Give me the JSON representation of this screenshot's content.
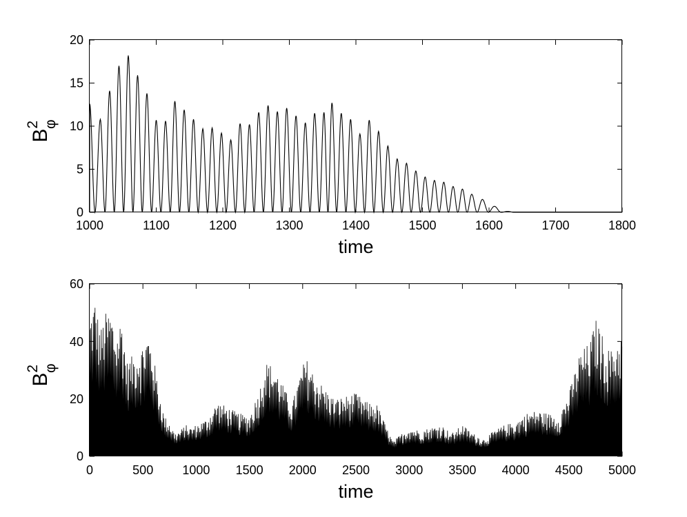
{
  "chart_data": [
    {
      "type": "line",
      "xlabel": "time",
      "ylabel": {
        "base": "B",
        "superscript": "2",
        "subscript": "φ"
      },
      "xlim": [
        1000,
        1800
      ],
      "ylim": [
        0,
        20
      ],
      "xticks": [
        "1000",
        "1100",
        "1200",
        "1300",
        "1400",
        "1500",
        "1600",
        "1700",
        "1800"
      ],
      "yticks": [
        "0",
        "5",
        "10",
        "15",
        "20"
      ],
      "grid": false,
      "series": [
        {
          "style": "oscillating-peaks",
          "x": [
            1000,
            1016,
            1030,
            1044,
            1058,
            1072,
            1086,
            1100,
            1114,
            1128,
            1142,
            1156,
            1170,
            1184,
            1198,
            1212,
            1226,
            1240,
            1254,
            1268,
            1282,
            1296,
            1310,
            1324,
            1338,
            1352,
            1364,
            1378,
            1392,
            1406,
            1420,
            1434,
            1448,
            1462,
            1476,
            1490,
            1504,
            1518,
            1532,
            1546,
            1560,
            1574,
            1590,
            1608,
            1628
          ],
          "peaks": [
            12.6,
            10.8,
            14.1,
            17.0,
            18.2,
            15.9,
            13.8,
            10.7,
            10.6,
            12.9,
            11.9,
            10.8,
            9.7,
            9.8,
            9.2,
            8.4,
            10.3,
            10.2,
            11.6,
            12.4,
            11.7,
            12.1,
            11.2,
            10.4,
            11.5,
            11.6,
            12.7,
            11.5,
            10.8,
            9.1,
            10.7,
            9.4,
            7.7,
            6.2,
            5.7,
            4.8,
            4.1,
            3.7,
            3.5,
            3.0,
            2.7,
            2.1,
            1.5,
            0.7,
            0.1
          ]
        }
      ]
    },
    {
      "type": "line",
      "xlabel": "time",
      "ylabel": {
        "base": "B",
        "superscript": "2",
        "subscript": "φ"
      },
      "xlim": [
        0,
        5000
      ],
      "ylim": [
        0,
        60
      ],
      "xticks": [
        "0",
        "500",
        "1000",
        "1500",
        "2000",
        "2500",
        "3000",
        "3500",
        "4000",
        "4500",
        "5000"
      ],
      "yticks": [
        "0",
        "20",
        "40",
        "60"
      ],
      "grid": false,
      "series": [
        {
          "style": "dense-oscillation-envelope",
          "envelope_x": [
            0,
            50,
            100,
            150,
            200,
            250,
            300,
            350,
            400,
            450,
            500,
            550,
            600,
            650,
            700,
            750,
            800,
            850,
            900,
            950,
            1000,
            1100,
            1200,
            1300,
            1400,
            1500,
            1600,
            1650,
            1700,
            1750,
            1800,
            1900,
            2000,
            2050,
            2100,
            2200,
            2300,
            2400,
            2500,
            2600,
            2700,
            2800,
            2850,
            2900,
            3000,
            3100,
            3200,
            3300,
            3400,
            3500,
            3600,
            3700,
            3800,
            3900,
            4000,
            4100,
            4200,
            4300,
            4400,
            4500,
            4600,
            4700,
            4750,
            4800,
            4850,
            4900,
            4950,
            5000
          ],
          "envelope_max": [
            49,
            55,
            44,
            50,
            51,
            42,
            49,
            33,
            35,
            37,
            39,
            43,
            35,
            23,
            14,
            12,
            8,
            9,
            11,
            10,
            11,
            13,
            19,
            17,
            15,
            14,
            24,
            33,
            32,
            30,
            26,
            18,
            32,
            34,
            29,
            24,
            20,
            21,
            22,
            19,
            18,
            9,
            5,
            7,
            10,
            9,
            10,
            11,
            8,
            11,
            8,
            6,
            9,
            11,
            12,
            15,
            16,
            15,
            14,
            22,
            36,
            40,
            48,
            44,
            38,
            37,
            40,
            43
          ],
          "envelope_min": [
            3,
            4,
            3,
            4,
            3,
            3,
            3,
            3,
            3,
            3,
            3,
            3,
            3,
            2,
            2,
            2,
            2,
            2,
            2,
            2,
            2,
            2,
            2,
            2,
            2,
            2,
            2,
            2,
            2,
            2,
            2,
            2,
            2,
            2,
            2,
            2,
            2,
            2,
            2,
            2,
            2,
            1,
            1,
            1,
            1,
            1,
            1,
            1,
            1,
            1,
            1,
            1,
            1,
            1,
            1,
            1,
            2,
            2,
            2,
            2,
            2,
            2,
            3,
            3,
            3,
            3,
            3,
            3
          ]
        }
      ]
    }
  ]
}
